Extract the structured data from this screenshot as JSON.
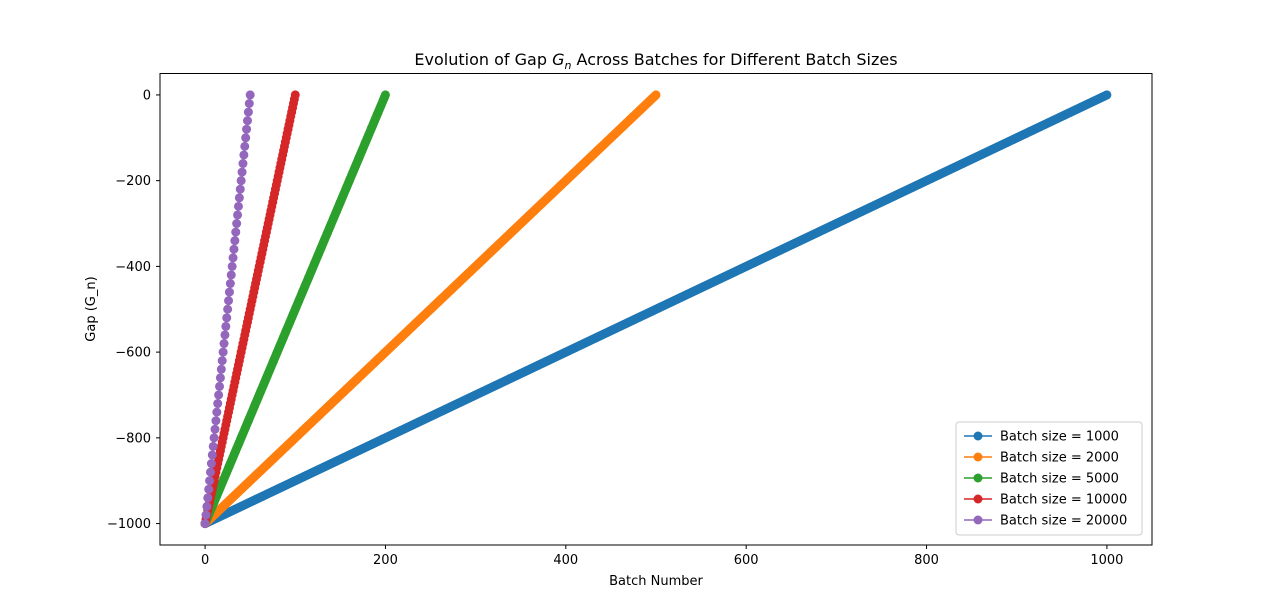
{
  "chart_data": {
    "type": "line",
    "title": {
      "prefix": "Evolution of Gap ",
      "symbol": "G",
      "subscript": "n",
      "suffix": " Across Batches for Different Batch Sizes"
    },
    "xlabel": "Batch Number",
    "ylabel": "Gap (G_n)",
    "xlim": [
      -50,
      1050
    ],
    "ylim": [
      -1050,
      50
    ],
    "xticks": [
      0,
      200,
      400,
      600,
      800,
      1000
    ],
    "yticks": [
      0,
      -200,
      -400,
      -600,
      -800,
      -1000
    ],
    "xtick_labels": [
      "0",
      "200",
      "400",
      "600",
      "800",
      "1000"
    ],
    "ytick_labels": [
      "0",
      "−200",
      "−400",
      "−600",
      "−800",
      "−1000"
    ],
    "grid": false,
    "legend_position": "lower-right",
    "marker": "circle",
    "series": [
      {
        "name": "Batch size = 1000",
        "color": "#1f77b4",
        "x_start": 0,
        "x_end": 1000,
        "y_start": -1000,
        "y_end": 0
      },
      {
        "name": "Batch size = 2000",
        "color": "#ff7f0e",
        "x_start": 0,
        "x_end": 500,
        "y_start": -1000,
        "y_end": 0
      },
      {
        "name": "Batch size = 5000",
        "color": "#2ca02c",
        "x_start": 0,
        "x_end": 200,
        "y_start": -1000,
        "y_end": 0
      },
      {
        "name": "Batch size = 10000",
        "color": "#d62728",
        "x_start": 0,
        "x_end": 100,
        "y_start": -1000,
        "y_end": 0
      },
      {
        "name": "Batch size = 20000",
        "color": "#9467bd",
        "x_start": 0,
        "x_end": 50,
        "y_start": -1000,
        "y_end": 0
      }
    ]
  }
}
